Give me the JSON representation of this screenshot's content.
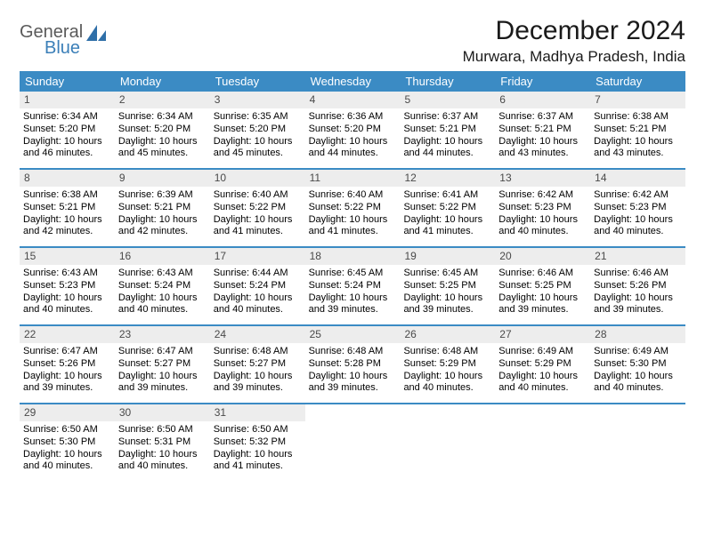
{
  "logo": {
    "general": "General",
    "blue": "Blue"
  },
  "title": "December 2024",
  "location": "Murwara, Madhya Pradesh, India",
  "colors": {
    "header_bg": "#3b8bc4",
    "header_fg": "#ffffff",
    "datebar_bg": "#ededed",
    "datebar_fg": "#4a4a4a",
    "rule": "#3b8bc4",
    "logo_gray": "#5a5a5a",
    "logo_blue": "#3b7fb8"
  },
  "day_names": [
    "Sunday",
    "Monday",
    "Tuesday",
    "Wednesday",
    "Thursday",
    "Friday",
    "Saturday"
  ],
  "weeks": [
    [
      {
        "d": "1",
        "sr": "Sunrise: 6:34 AM",
        "ss": "Sunset: 5:20 PM",
        "dl": "Daylight: 10 hours and 46 minutes."
      },
      {
        "d": "2",
        "sr": "Sunrise: 6:34 AM",
        "ss": "Sunset: 5:20 PM",
        "dl": "Daylight: 10 hours and 45 minutes."
      },
      {
        "d": "3",
        "sr": "Sunrise: 6:35 AM",
        "ss": "Sunset: 5:20 PM",
        "dl": "Daylight: 10 hours and 45 minutes."
      },
      {
        "d": "4",
        "sr": "Sunrise: 6:36 AM",
        "ss": "Sunset: 5:20 PM",
        "dl": "Daylight: 10 hours and 44 minutes."
      },
      {
        "d": "5",
        "sr": "Sunrise: 6:37 AM",
        "ss": "Sunset: 5:21 PM",
        "dl": "Daylight: 10 hours and 44 minutes."
      },
      {
        "d": "6",
        "sr": "Sunrise: 6:37 AM",
        "ss": "Sunset: 5:21 PM",
        "dl": "Daylight: 10 hours and 43 minutes."
      },
      {
        "d": "7",
        "sr": "Sunrise: 6:38 AM",
        "ss": "Sunset: 5:21 PM",
        "dl": "Daylight: 10 hours and 43 minutes."
      }
    ],
    [
      {
        "d": "8",
        "sr": "Sunrise: 6:38 AM",
        "ss": "Sunset: 5:21 PM",
        "dl": "Daylight: 10 hours and 42 minutes."
      },
      {
        "d": "9",
        "sr": "Sunrise: 6:39 AM",
        "ss": "Sunset: 5:21 PM",
        "dl": "Daylight: 10 hours and 42 minutes."
      },
      {
        "d": "10",
        "sr": "Sunrise: 6:40 AM",
        "ss": "Sunset: 5:22 PM",
        "dl": "Daylight: 10 hours and 41 minutes."
      },
      {
        "d": "11",
        "sr": "Sunrise: 6:40 AM",
        "ss": "Sunset: 5:22 PM",
        "dl": "Daylight: 10 hours and 41 minutes."
      },
      {
        "d": "12",
        "sr": "Sunrise: 6:41 AM",
        "ss": "Sunset: 5:22 PM",
        "dl": "Daylight: 10 hours and 41 minutes."
      },
      {
        "d": "13",
        "sr": "Sunrise: 6:42 AM",
        "ss": "Sunset: 5:23 PM",
        "dl": "Daylight: 10 hours and 40 minutes."
      },
      {
        "d": "14",
        "sr": "Sunrise: 6:42 AM",
        "ss": "Sunset: 5:23 PM",
        "dl": "Daylight: 10 hours and 40 minutes."
      }
    ],
    [
      {
        "d": "15",
        "sr": "Sunrise: 6:43 AM",
        "ss": "Sunset: 5:23 PM",
        "dl": "Daylight: 10 hours and 40 minutes."
      },
      {
        "d": "16",
        "sr": "Sunrise: 6:43 AM",
        "ss": "Sunset: 5:24 PM",
        "dl": "Daylight: 10 hours and 40 minutes."
      },
      {
        "d": "17",
        "sr": "Sunrise: 6:44 AM",
        "ss": "Sunset: 5:24 PM",
        "dl": "Daylight: 10 hours and 40 minutes."
      },
      {
        "d": "18",
        "sr": "Sunrise: 6:45 AM",
        "ss": "Sunset: 5:24 PM",
        "dl": "Daylight: 10 hours and 39 minutes."
      },
      {
        "d": "19",
        "sr": "Sunrise: 6:45 AM",
        "ss": "Sunset: 5:25 PM",
        "dl": "Daylight: 10 hours and 39 minutes."
      },
      {
        "d": "20",
        "sr": "Sunrise: 6:46 AM",
        "ss": "Sunset: 5:25 PM",
        "dl": "Daylight: 10 hours and 39 minutes."
      },
      {
        "d": "21",
        "sr": "Sunrise: 6:46 AM",
        "ss": "Sunset: 5:26 PM",
        "dl": "Daylight: 10 hours and 39 minutes."
      }
    ],
    [
      {
        "d": "22",
        "sr": "Sunrise: 6:47 AM",
        "ss": "Sunset: 5:26 PM",
        "dl": "Daylight: 10 hours and 39 minutes."
      },
      {
        "d": "23",
        "sr": "Sunrise: 6:47 AM",
        "ss": "Sunset: 5:27 PM",
        "dl": "Daylight: 10 hours and 39 minutes."
      },
      {
        "d": "24",
        "sr": "Sunrise: 6:48 AM",
        "ss": "Sunset: 5:27 PM",
        "dl": "Daylight: 10 hours and 39 minutes."
      },
      {
        "d": "25",
        "sr": "Sunrise: 6:48 AM",
        "ss": "Sunset: 5:28 PM",
        "dl": "Daylight: 10 hours and 39 minutes."
      },
      {
        "d": "26",
        "sr": "Sunrise: 6:48 AM",
        "ss": "Sunset: 5:29 PM",
        "dl": "Daylight: 10 hours and 40 minutes."
      },
      {
        "d": "27",
        "sr": "Sunrise: 6:49 AM",
        "ss": "Sunset: 5:29 PM",
        "dl": "Daylight: 10 hours and 40 minutes."
      },
      {
        "d": "28",
        "sr": "Sunrise: 6:49 AM",
        "ss": "Sunset: 5:30 PM",
        "dl": "Daylight: 10 hours and 40 minutes."
      }
    ],
    [
      {
        "d": "29",
        "sr": "Sunrise: 6:50 AM",
        "ss": "Sunset: 5:30 PM",
        "dl": "Daylight: 10 hours and 40 minutes."
      },
      {
        "d": "30",
        "sr": "Sunrise: 6:50 AM",
        "ss": "Sunset: 5:31 PM",
        "dl": "Daylight: 10 hours and 40 minutes."
      },
      {
        "d": "31",
        "sr": "Sunrise: 6:50 AM",
        "ss": "Sunset: 5:32 PM",
        "dl": "Daylight: 10 hours and 41 minutes."
      },
      {
        "empty": true
      },
      {
        "empty": true
      },
      {
        "empty": true
      },
      {
        "empty": true
      }
    ]
  ]
}
